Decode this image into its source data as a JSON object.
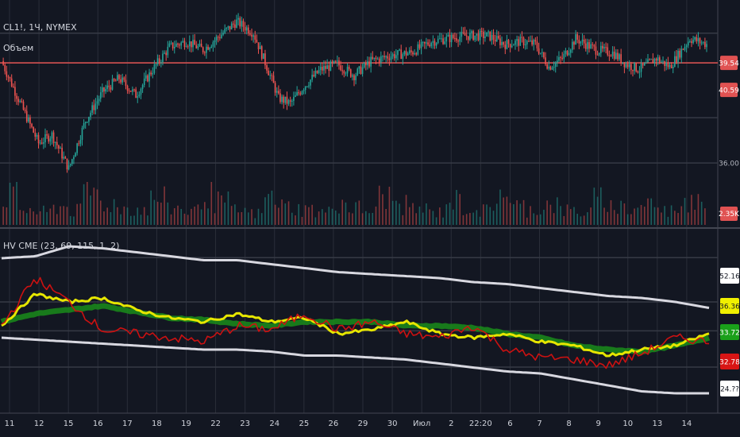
{
  "header": {
    "symbol_text": "CL1!, 1Ч, NYMEX",
    "volume_text": "Объем",
    "indicator_text": "HV CME (23, 69, 115, 1, 2)"
  },
  "colors": {
    "background": "#131722",
    "grid": "#2a2e39",
    "up": "#26a69a",
    "down": "#ef5350",
    "price_line": "#e05252",
    "hv_short": "#cc1111",
    "hv_mid": "#e6e600",
    "hv_long": "#1a8c1a",
    "band": "#d8d8e0"
  },
  "chart_data": [
    {
      "type": "candlestick",
      "title": "CL1!, 1Ч, NYMEX",
      "price_labels": [
        "39.54",
        "40.59",
        "36.00"
      ],
      "ylim": [
        34.6,
        41.2
      ],
      "volume_label": "Объем",
      "volume_marker": "2.35K",
      "x_tick_labels": [
        "11",
        "12",
        "15",
        "16",
        "17",
        "18",
        "19",
        "22",
        "23",
        "24",
        "25",
        "26",
        "29",
        "30",
        "Июл",
        "2",
        "22:20",
        "6",
        "7",
        "8",
        "9",
        "10",
        "13",
        "14"
      ],
      "price_path": [
        [
          0,
          39.6
        ],
        [
          12,
          38.0
        ],
        [
          22,
          36.7
        ],
        [
          30,
          37.0
        ],
        [
          40,
          35.8
        ],
        [
          50,
          37.5
        ],
        [
          60,
          38.5
        ],
        [
          70,
          39.0
        ],
        [
          80,
          38.4
        ],
        [
          90,
          39.3
        ],
        [
          100,
          40.1
        ],
        [
          110,
          40.3
        ],
        [
          120,
          40.0
        ],
        [
          130,
          40.5
        ],
        [
          140,
          41.0
        ],
        [
          150,
          40.6
        ],
        [
          158,
          39.4
        ],
        [
          165,
          38.3
        ],
        [
          172,
          38.1
        ],
        [
          180,
          38.7
        ],
        [
          190,
          39.3
        ],
        [
          200,
          39.5
        ],
        [
          210,
          39.1
        ],
        [
          220,
          39.6
        ],
        [
          232,
          39.8
        ],
        [
          244,
          39.9
        ],
        [
          256,
          40.3
        ],
        [
          266,
          40.4
        ],
        [
          276,
          40.5
        ],
        [
          290,
          40.5
        ],
        [
          300,
          40.2
        ],
        [
          310,
          40.3
        ],
        [
          318,
          40.2
        ],
        [
          326,
          39.4
        ],
        [
          334,
          39.7
        ],
        [
          342,
          40.4
        ],
        [
          354,
          40.0
        ],
        [
          364,
          39.9
        ],
        [
          372,
          39.5
        ],
        [
          380,
          39.3
        ],
        [
          390,
          39.7
        ],
        [
          398,
          39.4
        ],
        [
          410,
          40.4
        ],
        [
          420,
          40.2
        ]
      ],
      "volume": [
        2.1,
        1.1,
        0.9,
        1.3,
        1.0,
        2.4,
        1.5,
        1.2,
        1.1,
        1.8,
        1.2,
        1.0,
        2.2,
        1.6,
        1.0,
        0.8,
        1.9,
        1.3,
        1.1,
        0.9,
        1.6,
        1.2,
        1.0,
        2.0,
        1.4,
        1.1,
        0.9,
        1.7,
        1.2,
        1.0,
        2.5,
        1.3,
        1.1,
        1.5,
        1.0,
        0.9,
        1.8,
        1.3,
        1.1,
        1.6,
        1.0,
        1.4,
        2.2,
        1.2
      ]
    },
    {
      "type": "line",
      "title": "HV CME (23, 69, 115, 1, 2)",
      "ylim": [
        17.0,
        57.0
      ],
      "value_labels": [
        "52.16",
        "36.36",
        "33.72",
        "32.78",
        "24.??"
      ],
      "x": [
        0,
        20,
        40,
        60,
        80,
        100,
        120,
        140,
        160,
        180,
        200,
        220,
        240,
        260,
        280,
        300,
        320,
        340,
        360,
        380,
        400,
        420
      ],
      "series": [
        {
          "values": [
            52,
            52.5,
            55,
            54.5,
            53.5,
            52.5,
            51.5,
            51.5,
            50.5,
            49.5,
            48.5,
            48,
            47.5,
            47,
            46,
            45.5,
            44.5,
            43.5,
            42.5,
            42,
            41,
            39.5
          ]
        },
        {
          "values": [
            35,
            47,
            41,
            34,
            33,
            32,
            31,
            35,
            34,
            38,
            34,
            36,
            33,
            32,
            35,
            29,
            27,
            26.5,
            25,
            28,
            32,
            31
          ]
        },
        {
          "values": [
            35,
            43,
            41,
            42,
            39,
            37,
            36,
            38,
            36,
            37,
            33,
            34,
            36,
            33,
            32,
            33,
            31,
            30,
            27.5,
            29,
            30,
            33
          ]
        },
        {
          "values": [
            36,
            38,
            39,
            40,
            38.5,
            37,
            36.5,
            35.5,
            35,
            36,
            36,
            36,
            35,
            35,
            34.5,
            33,
            32,
            30,
            29,
            28.5,
            30,
            32
          ]
        },
        {
          "values": [
            32,
            31.5,
            31,
            30.5,
            30,
            29.5,
            29,
            29,
            28.5,
            27.5,
            27.5,
            27,
            26.5,
            25.5,
            24.5,
            23.5,
            23,
            21.5,
            20,
            18.5,
            18,
            18
          ]
        }
      ]
    }
  ]
}
